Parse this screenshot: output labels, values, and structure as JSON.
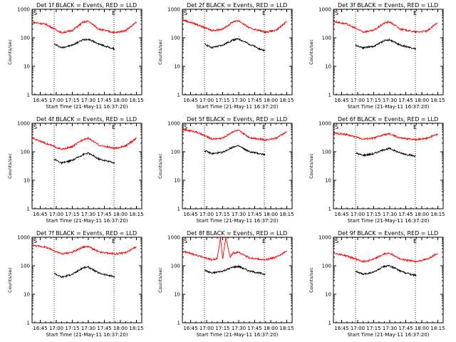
{
  "colors": {
    "events": "#000000",
    "lld": "#ff0000",
    "background": "#ffffff",
    "axis": "#000000"
  },
  "layout_rows": 3,
  "layout_cols": 3,
  "common": {
    "xlabel": "Start Time (21-May-11 16:37:20)",
    "ylabel": "Counts/sec",
    "xticks": [
      "16:45",
      "17:00",
      "17:15",
      "17:30",
      "17:45",
      "18:00",
      "18:15"
    ],
    "yticks": [
      "1",
      "10",
      "100",
      "1000"
    ],
    "marker_start": "S",
    "marker_end": "E"
  },
  "chart_data": [
    {
      "type": "line",
      "title": "Det 1f BLACK = Events, RED = LLD",
      "y_scale": "log",
      "ylim": [
        1,
        1000
      ],
      "xlim": [
        "16:37:20",
        "18:20"
      ],
      "vlines": [
        "16:58",
        "17:54"
      ],
      "series": [
        {
          "name": "Events",
          "color": "#000000",
          "x": [
            "16:58",
            "17:05",
            "17:15",
            "17:25",
            "17:30",
            "17:40",
            "17:50",
            "17:55"
          ],
          "values": [
            60,
            45,
            55,
            85,
            90,
            60,
            45,
            40
          ]
        },
        {
          "name": "LLD",
          "color": "#ff0000",
          "x": [
            "16:38",
            "16:50",
            "17:05",
            "17:15",
            "17:25",
            "17:30",
            "17:40",
            "17:55",
            "18:05",
            "18:15"
          ],
          "values": [
            350,
            300,
            150,
            180,
            350,
            380,
            200,
            150,
            180,
            350
          ]
        }
      ]
    },
    {
      "type": "line",
      "title": "Det 2f BLACK = Events, RED = LLD",
      "y_scale": "log",
      "ylim": [
        1,
        1000
      ],
      "xlim": [
        "16:37:20",
        "18:20"
      ],
      "vlines": [
        "16:58",
        "17:54"
      ],
      "series": [
        {
          "name": "Events",
          "color": "#000000",
          "x": [
            "16:58",
            "17:05",
            "17:15",
            "17:25",
            "17:30",
            "17:40",
            "17:50",
            "17:55"
          ],
          "values": [
            60,
            45,
            55,
            85,
            90,
            60,
            40,
            35
          ]
        },
        {
          "name": "LLD",
          "color": "#ff0000",
          "x": [
            "16:38",
            "16:50",
            "17:05",
            "17:15",
            "17:25",
            "17:30",
            "17:40",
            "17:55",
            "18:05",
            "18:15"
          ],
          "values": [
            420,
            300,
            180,
            200,
            370,
            400,
            220,
            160,
            180,
            380
          ]
        }
      ]
    },
    {
      "type": "line",
      "title": "Det 3f BLACK = Events, RED = LLD",
      "y_scale": "log",
      "ylim": [
        1,
        1000
      ],
      "xlim": [
        "16:37:20",
        "18:20"
      ],
      "vlines": [
        "16:58",
        "17:54"
      ],
      "series": [
        {
          "name": "Events",
          "color": "#000000",
          "x": [
            "16:58",
            "17:05",
            "17:15",
            "17:25",
            "17:30",
            "17:40",
            "17:50",
            "17:55"
          ],
          "values": [
            55,
            45,
            50,
            80,
            85,
            55,
            45,
            40
          ]
        },
        {
          "name": "LLD",
          "color": "#ff0000",
          "x": [
            "16:38",
            "16:50",
            "17:05",
            "17:15",
            "17:25",
            "17:30",
            "17:40",
            "17:55",
            "18:05",
            "18:15"
          ],
          "values": [
            370,
            300,
            160,
            180,
            330,
            360,
            200,
            160,
            170,
            350
          ]
        }
      ]
    },
    {
      "type": "line",
      "title": "Det 4f BLACK = Events, RED = LLD",
      "y_scale": "log",
      "ylim": [
        1,
        1000
      ],
      "xlim": [
        "16:37:20",
        "18:20"
      ],
      "vlines": [
        "16:58",
        "17:54"
      ],
      "series": [
        {
          "name": "Events",
          "color": "#000000",
          "x": [
            "16:58",
            "17:05",
            "17:15",
            "17:25",
            "17:30",
            "17:40",
            "17:50",
            "17:55"
          ],
          "values": [
            55,
            40,
            50,
            80,
            90,
            55,
            45,
            40
          ]
        },
        {
          "name": "LLD",
          "color": "#ff0000",
          "x": [
            "16:38",
            "16:50",
            "17:05",
            "17:15",
            "17:25",
            "17:30",
            "17:40",
            "17:55",
            "18:05",
            "18:15"
          ],
          "values": [
            300,
            200,
            120,
            150,
            270,
            300,
            170,
            130,
            160,
            300
          ]
        }
      ]
    },
    {
      "type": "line",
      "title": "Det 5f BLACK = Events, RED = LLD",
      "y_scale": "log",
      "ylim": [
        1,
        1000
      ],
      "xlim": [
        "16:37:20",
        "18:20"
      ],
      "vlines": [
        "16:58",
        "17:54"
      ],
      "series": [
        {
          "name": "Events",
          "color": "#000000",
          "x": [
            "16:58",
            "17:05",
            "17:15",
            "17:25",
            "17:30",
            "17:40",
            "17:50",
            "17:55"
          ],
          "values": [
            110,
            85,
            95,
            150,
            160,
            100,
            85,
            80
          ]
        },
        {
          "name": "LLD",
          "color": "#ff0000",
          "x": [
            "16:38",
            "16:50",
            "17:05",
            "17:15",
            "17:25",
            "17:30",
            "17:40",
            "17:55",
            "18:05",
            "18:15"
          ],
          "values": [
            600,
            500,
            280,
            300,
            520,
            560,
            320,
            260,
            300,
            500
          ]
        }
      ]
    },
    {
      "type": "line",
      "title": "Det 6f BLACK = Events, RED = LLD",
      "y_scale": "log",
      "ylim": [
        1,
        1000
      ],
      "xlim": [
        "16:37:20",
        "18:20"
      ],
      "vlines": [
        "16:58",
        "17:54"
      ],
      "series": [
        {
          "name": "Events",
          "color": "#000000",
          "x": [
            "16:58",
            "17:05",
            "17:15",
            "17:25",
            "17:30",
            "17:40",
            "17:50",
            "17:55"
          ],
          "values": [
            90,
            75,
            85,
            120,
            130,
            90,
            75,
            70
          ]
        },
        {
          "name": "LLD",
          "color": "#ff0000",
          "x": [
            "16:38",
            "16:50",
            "17:05",
            "17:15",
            "17:25",
            "17:30",
            "17:40",
            "17:55",
            "18:05",
            "18:15"
          ],
          "values": [
            450,
            400,
            280,
            300,
            400,
            420,
            300,
            270,
            300,
            420
          ]
        }
      ]
    },
    {
      "type": "line",
      "title": "Det 7f BLACK = Events, RED = LLD",
      "y_scale": "log",
      "ylim": [
        1,
        1000
      ],
      "xlim": [
        "16:37:20",
        "18:20"
      ],
      "vlines": [
        "16:58",
        "17:54"
      ],
      "series": [
        {
          "name": "Events",
          "color": "#000000",
          "x": [
            "16:58",
            "17:05",
            "17:15",
            "17:25",
            "17:30",
            "17:40",
            "17:50",
            "17:55"
          ],
          "values": [
            55,
            40,
            50,
            85,
            90,
            55,
            45,
            40
          ]
        },
        {
          "name": "LLD",
          "color": "#ff0000",
          "x": [
            "16:38",
            "16:50",
            "17:05",
            "17:15",
            "17:25",
            "17:30",
            "17:40",
            "17:55",
            "18:05",
            "18:15"
          ],
          "values": [
            520,
            450,
            260,
            300,
            450,
            480,
            300,
            260,
            290,
            450
          ]
        }
      ]
    },
    {
      "type": "line",
      "title": "Det 8f BLACK = Events, RED = LLD",
      "y_scale": "log",
      "ylim": [
        1,
        1000
      ],
      "xlim": [
        "16:37:20",
        "18:20"
      ],
      "vlines": [
        "16:58",
        "17:54"
      ],
      "series": [
        {
          "name": "Events",
          "color": "#000000",
          "x": [
            "16:58",
            "17:05",
            "17:10",
            "17:15",
            "17:25",
            "17:30",
            "17:40",
            "17:50",
            "17:55"
          ],
          "values": [
            70,
            55,
            60,
            65,
            90,
            95,
            65,
            55,
            50
          ]
        },
        {
          "name": "LLD",
          "color": "#ff0000",
          "x": [
            "16:38",
            "16:50",
            "17:05",
            "17:10",
            "17:13",
            "17:15",
            "17:18",
            "17:22",
            "17:25",
            "17:30",
            "17:40",
            "17:55",
            "18:05",
            "18:15"
          ],
          "values": [
            320,
            240,
            160,
            180,
            1000,
            170,
            1000,
            200,
            280,
            300,
            190,
            160,
            200,
            330
          ]
        }
      ]
    },
    {
      "type": "line",
      "title": "Det 9f BLACK = Events, RED = LLD",
      "y_scale": "log",
      "ylim": [
        1,
        1000
      ],
      "xlim": [
        "16:37:20",
        "18:20"
      ],
      "vlines": [
        "16:58",
        "17:54"
      ],
      "series": [
        {
          "name": "Events",
          "color": "#000000",
          "x": [
            "16:58",
            "17:05",
            "17:15",
            "17:25",
            "17:30",
            "17:40",
            "17:50",
            "17:55"
          ],
          "values": [
            65,
            50,
            60,
            95,
            100,
            65,
            50,
            45
          ]
        },
        {
          "name": "LLD",
          "color": "#ff0000",
          "x": [
            "16:38",
            "16:50",
            "17:05",
            "17:15",
            "17:25",
            "17:30",
            "17:40",
            "17:55",
            "18:05",
            "18:15"
          ],
          "values": [
            280,
            220,
            140,
            170,
            260,
            280,
            170,
            140,
            170,
            280
          ]
        }
      ]
    }
  ]
}
